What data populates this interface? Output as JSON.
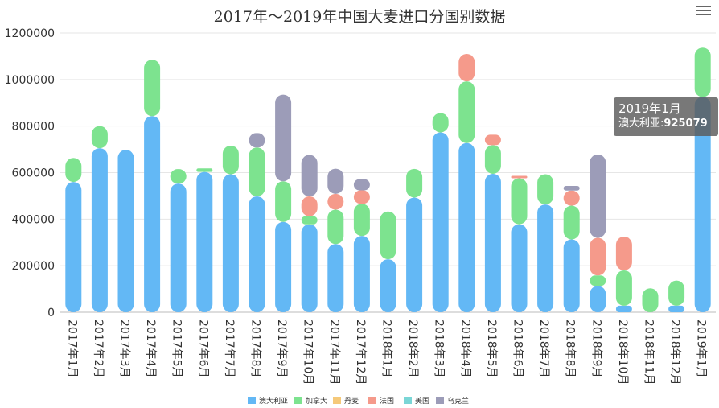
{
  "chart_data": {
    "type": "bar",
    "stacked": true,
    "title": "2017年～2019年中国大麦进口分国别数据",
    "ylim": [
      0,
      1200000
    ],
    "yticks": [
      0,
      200000,
      400000,
      600000,
      800000,
      1000000,
      1200000
    ],
    "ytick_labels": [
      "0",
      "200000",
      "400000",
      "600000",
      "800000",
      "1000000",
      "1200000"
    ],
    "grid": true,
    "legend_position": "bottom",
    "categories": [
      "2017年1月",
      "2017年2月",
      "2017年3月",
      "2017年4月",
      "2017年5月",
      "2017年6月",
      "2017年7月",
      "2017年8月",
      "2017年9月",
      "2017年10月",
      "2017年11月",
      "2017年12月",
      "2018年1月",
      "2018年2月",
      "2018年3月",
      "2018年4月",
      "2018年5月",
      "2018年6月",
      "2018年7月",
      "2018年8月",
      "2018年9月",
      "2018年10月",
      "2018年11月",
      "2018年12月",
      "2019年1月"
    ],
    "series": [
      {
        "name": "澳大利亚",
        "color": "#63b8f5",
        "values": [
          560000,
          705000,
          698000,
          843000,
          553000,
          603000,
          593000,
          498000,
          388000,
          378000,
          293000,
          328000,
          228000,
          493000,
          773000,
          727000,
          595000,
          378000,
          463000,
          313000,
          113000,
          28000,
          0,
          28000,
          925079
        ]
      },
      {
        "name": "加拿大",
        "color": "#7de38f",
        "values": [
          103000,
          95000,
          0,
          242000,
          62000,
          15000,
          123000,
          210000,
          175000,
          35000,
          148000,
          138000,
          205000,
          123000,
          83000,
          265000,
          123000,
          198000,
          130000,
          145000,
          45000,
          152000,
          103000,
          108000,
          212000
        ]
      },
      {
        "name": "丹麦",
        "color": "#f5c97a",
        "values": [
          0,
          0,
          0,
          0,
          0,
          0,
          0,
          0,
          0,
          0,
          0,
          0,
          0,
          0,
          0,
          0,
          0,
          0,
          0,
          0,
          0,
          0,
          0,
          0,
          0
        ]
      },
      {
        "name": "法国",
        "color": "#f59a8b",
        "values": [
          0,
          0,
          0,
          0,
          0,
          0,
          0,
          0,
          0,
          85000,
          68000,
          58000,
          0,
          0,
          0,
          118000,
          45000,
          10000,
          0,
          65000,
          162000,
          145000,
          0,
          0,
          0
        ]
      },
      {
        "name": "美国",
        "color": "#7ad6d6",
        "values": [
          0,
          0,
          0,
          0,
          0,
          0,
          0,
          0,
          0,
          0,
          0,
          0,
          0,
          0,
          0,
          0,
          0,
          0,
          0,
          0,
          0,
          0,
          0,
          0,
          0
        ]
      },
      {
        "name": "乌克兰",
        "color": "#9c9cb8",
        "values": [
          0,
          0,
          0,
          0,
          0,
          0,
          0,
          62000,
          372000,
          178000,
          108000,
          48000,
          0,
          0,
          0,
          0,
          0,
          0,
          0,
          20000,
          358000,
          0,
          0,
          0,
          0
        ]
      }
    ]
  },
  "tooltip": {
    "title": "2019年1月",
    "series": "澳大利亚",
    "sep": ":",
    "value": "925079"
  }
}
